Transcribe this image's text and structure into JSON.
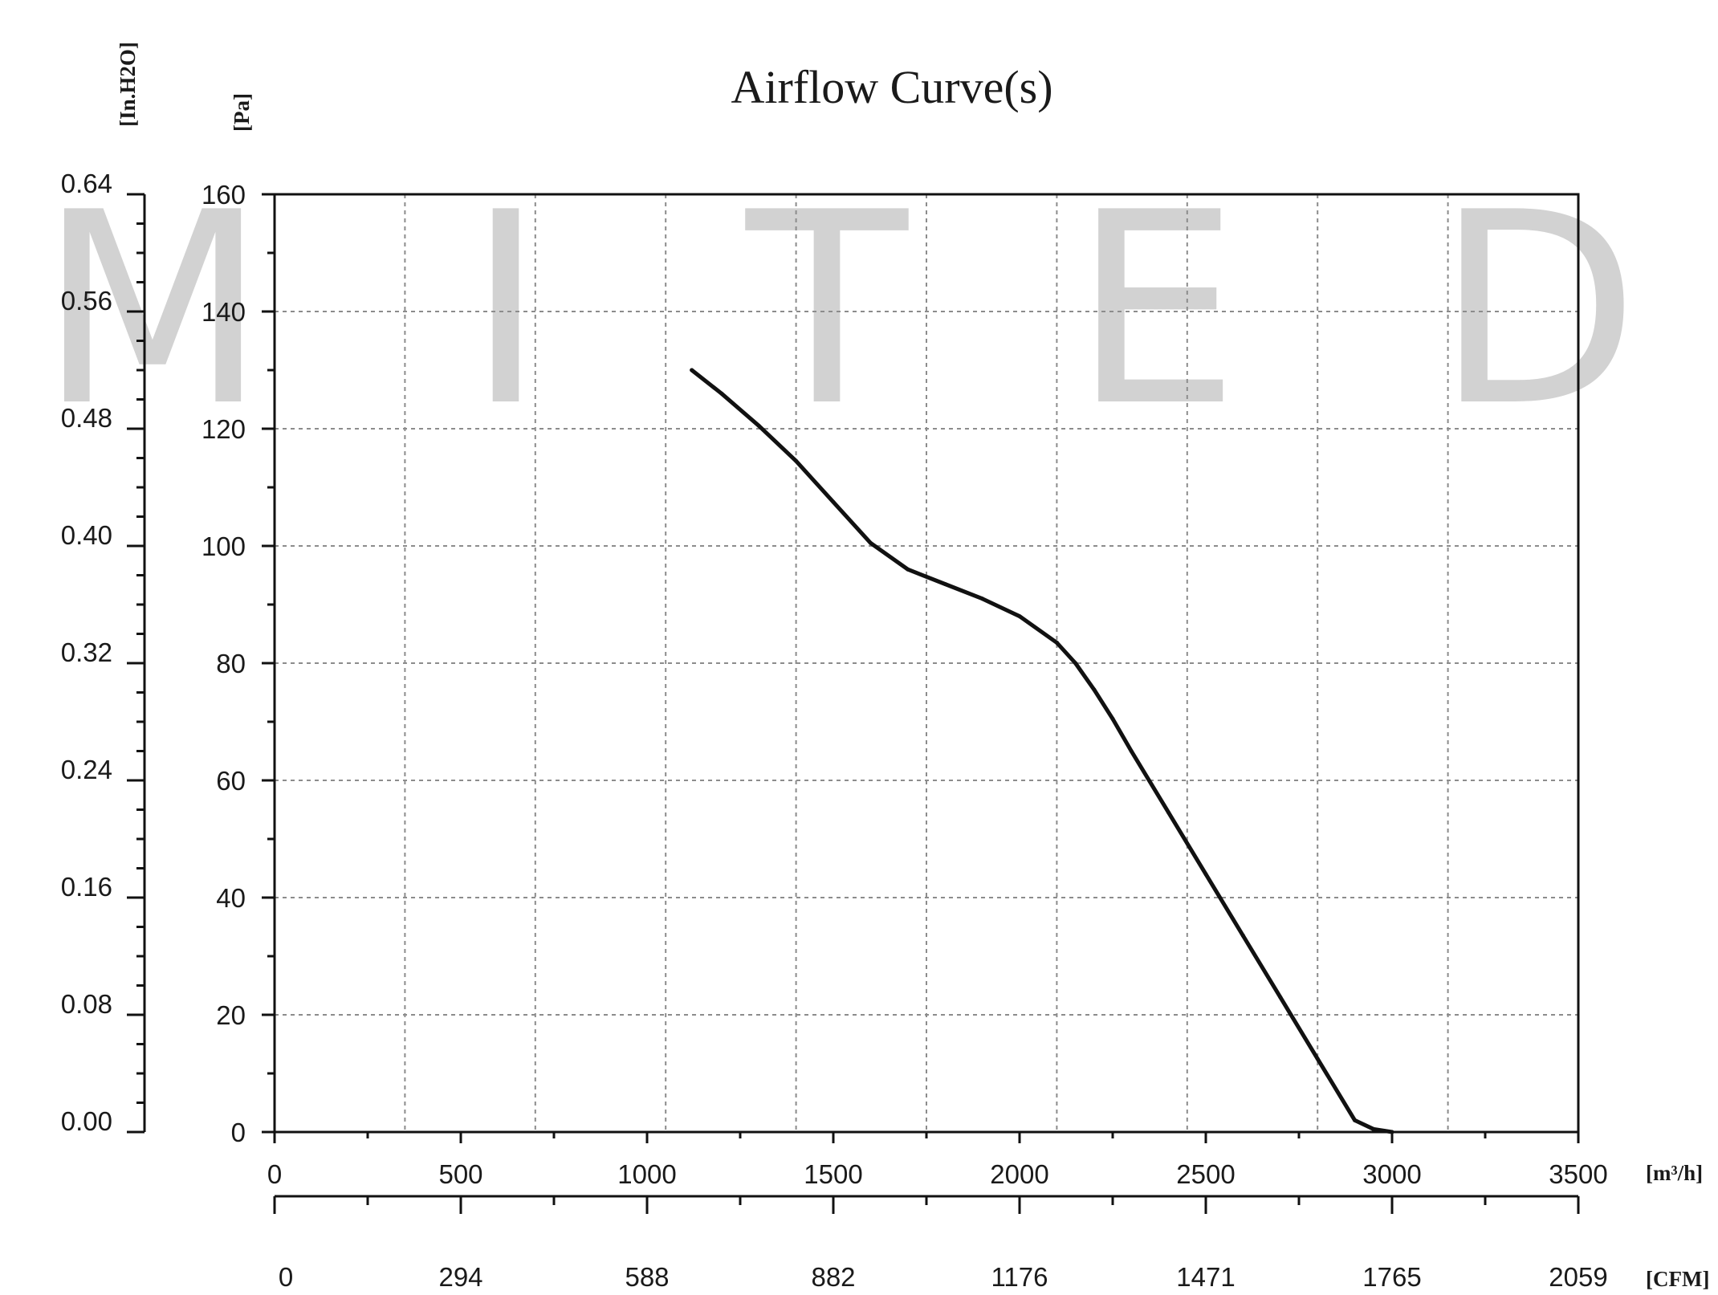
{
  "chart_data": {
    "type": "line",
    "title": "Airflow Curve(s)",
    "watermark": [
      "M",
      "I",
      "T",
      "E",
      "D"
    ],
    "colors": {
      "curve": "#111111",
      "axes": "#111111",
      "grid": "#8c8c8c",
      "watermark": "#d2d2d2"
    },
    "grid": true,
    "x_axis": {
      "unit_label": "[m³/h]",
      "range": [
        0,
        3500
      ],
      "ticks": [
        0,
        500,
        1000,
        1500,
        2000,
        2500,
        3000,
        3500
      ],
      "tick_labels": [
        "0",
        "500",
        "1000",
        "1500",
        "2000",
        "2500",
        "3000",
        "3500"
      ],
      "gridlines": [
        350,
        700,
        1050,
        1400,
        1750,
        2100,
        2450,
        2800,
        3150
      ]
    },
    "x2_axis": {
      "unit_label": "[CFM]",
      "tick_labels": [
        "0",
        "294",
        "588",
        "882",
        "1176",
        "1471",
        "1765",
        "2059"
      ]
    },
    "y_axis": {
      "unit_label": "[Pa]",
      "range": [
        0,
        160
      ],
      "ticks": [
        0,
        20,
        40,
        60,
        80,
        100,
        120,
        140,
        160
      ],
      "tick_labels": [
        "0",
        "20",
        "40",
        "60",
        "80",
        "100",
        "120",
        "140",
        "160"
      ]
    },
    "y2_axis": {
      "unit_label": "[In.H2O]",
      "tick_labels": [
        "0.00",
        "0.08",
        "0.16",
        "0.24",
        "0.32",
        "0.40",
        "0.48",
        "0.56",
        "0.64"
      ]
    },
    "series": [
      {
        "x": [
          1120,
          1200,
          1300,
          1400,
          1500,
          1600,
          1700,
          1800,
          1900,
          2000,
          2100,
          2150,
          2200,
          2250,
          2300,
          2400,
          2500,
          2600,
          2700,
          2800,
          2900,
          2950,
          3000
        ],
        "y": [
          130,
          126,
          120.5,
          114.5,
          107.5,
          100.5,
          96,
          93.5,
          91,
          88,
          83.5,
          80,
          75.5,
          70.5,
          65,
          54.5,
          44,
          33.5,
          23,
          12.5,
          2,
          0.5,
          0
        ]
      }
    ]
  }
}
